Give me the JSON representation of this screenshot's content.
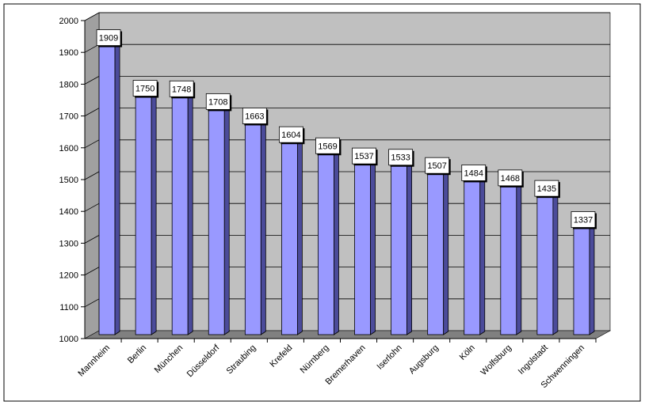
{
  "chart_data": {
    "type": "bar",
    "categories": [
      "Mannheim",
      "Berlin",
      "München",
      "Düsseldorf",
      "Straubing",
      "Krefeld",
      "Nürnberg",
      "Bremerhaven",
      "Iserlohn",
      "Augsburg",
      "Köln",
      "Wolfsburg",
      "Ingolstadt",
      "Schwenningen"
    ],
    "values": [
      1909,
      1750,
      1748,
      1708,
      1663,
      1604,
      1569,
      1537,
      1533,
      1507,
      1484,
      1468,
      1435,
      1337
    ],
    "ylim": [
      1000,
      2000
    ],
    "yticks": [
      1000,
      1100,
      1200,
      1300,
      1400,
      1500,
      1600,
      1700,
      1800,
      1900,
      2000
    ],
    "grid": true,
    "three_d": true,
    "legend": "none",
    "colors": {
      "bar_front": "#9999ff",
      "bar_side": "#4b4b9a",
      "bar_top": "#b8b8ff",
      "plot_back": "#c0c0c0",
      "plot_floor": "#808080",
      "plot_wall": "#a0a0a0",
      "gridline": "#000000",
      "label_bg": "#ffffff"
    }
  }
}
